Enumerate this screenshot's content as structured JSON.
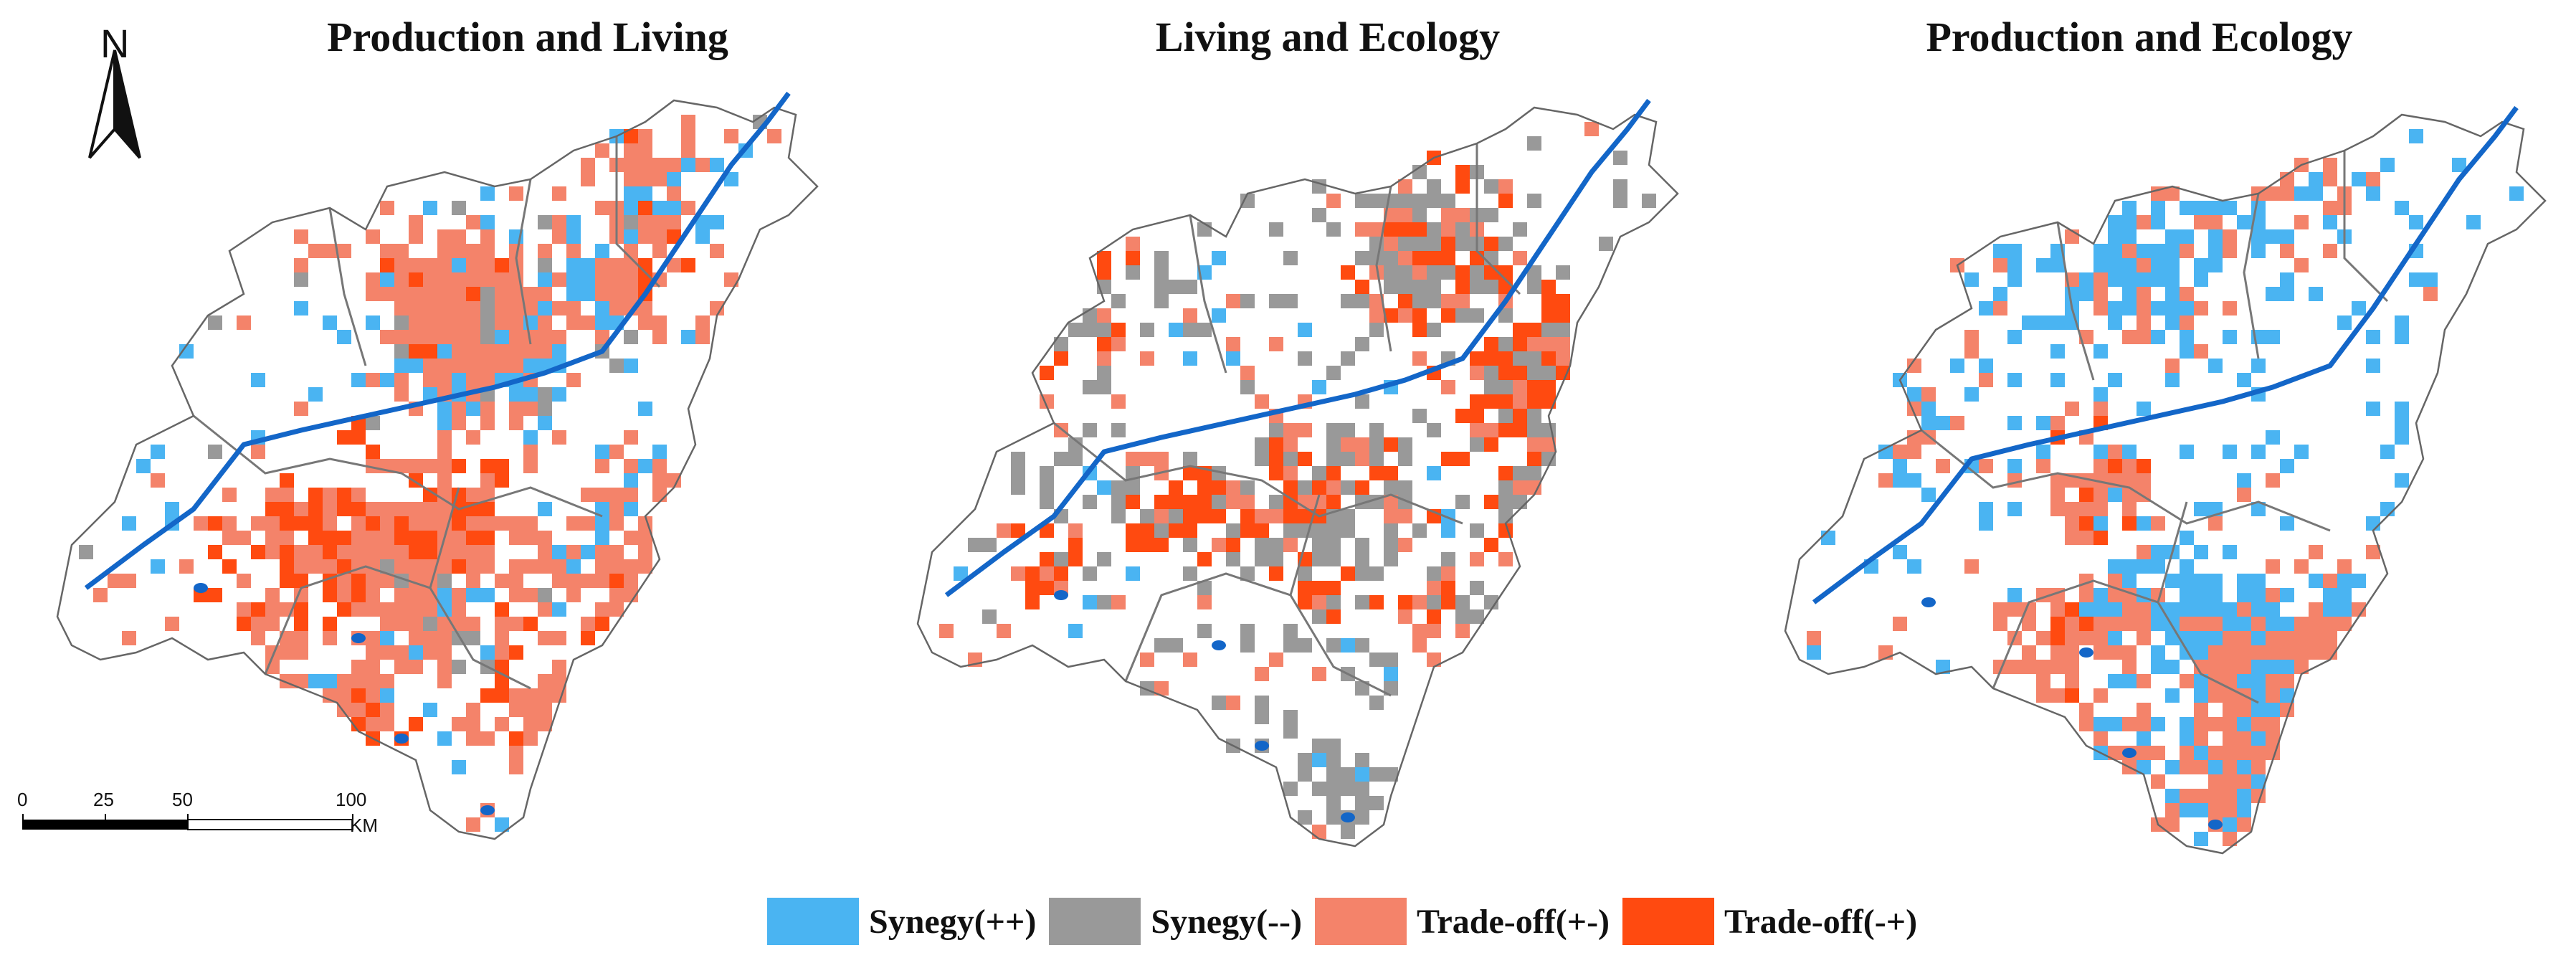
{
  "panels": [
    {
      "title": "Production and Living",
      "mix": [
        0.25,
        0.05,
        0.45,
        0.25
      ],
      "density": 0.42,
      "seed": 11
    },
    {
      "title": "Living and Ecology",
      "mix": [
        0.12,
        0.38,
        0.12,
        0.38
      ],
      "density": 0.55,
      "seed": 23
    },
    {
      "title": "Production and Ecology",
      "mix": [
        0.48,
        0.0,
        0.46,
        0.06
      ],
      "density": 0.32,
      "seed": 37
    }
  ],
  "legend": [
    {
      "label": "Synegy(++)",
      "color": "#4ab4f2"
    },
    {
      "label": "Synegy(--)",
      "color": "#999999"
    },
    {
      "label": "Trade-off(+-)",
      "color": "#f4836a"
    },
    {
      "label": "Trade-off(-+)",
      "color": "#ff4a10"
    }
  ],
  "north_arrow": "N",
  "scale_bar": {
    "ticks": [
      "0",
      "25",
      "50",
      "100"
    ],
    "unit": "KM"
  },
  "colors": {
    "river": "#1366c8",
    "boundary": "#777777"
  }
}
